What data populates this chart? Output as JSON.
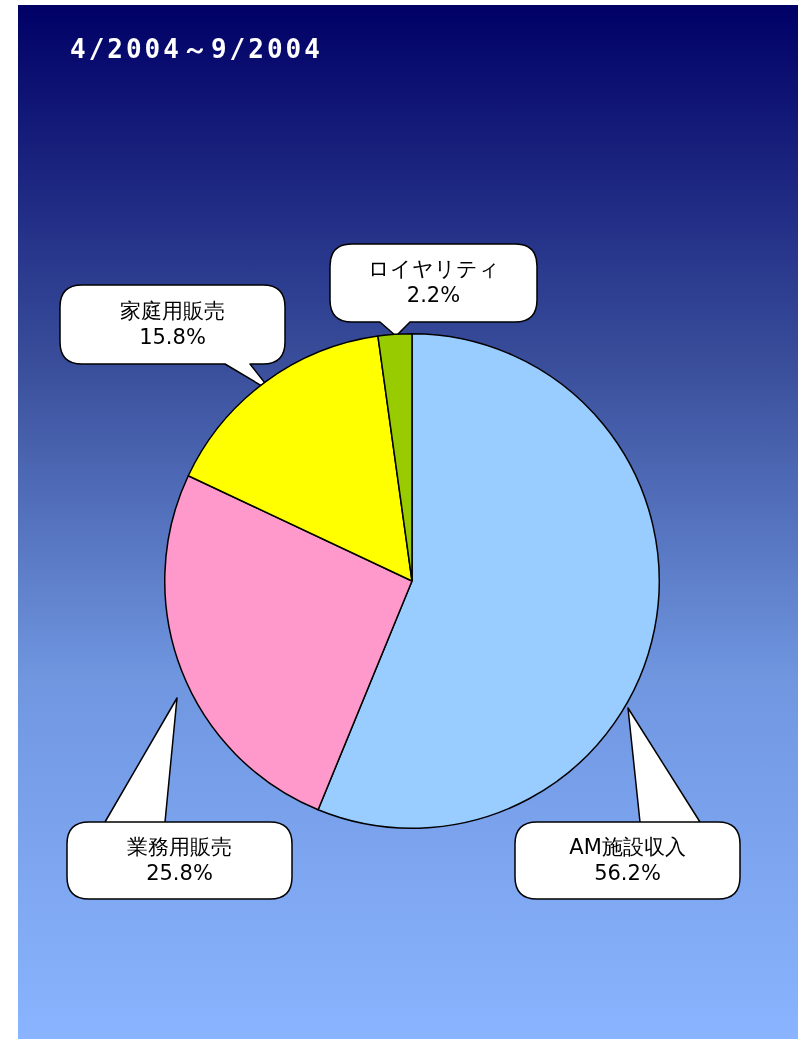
{
  "chart_data": {
    "type": "pie",
    "title": "4/2004～9/2004",
    "categories": [
      "AM施設収入",
      "業務用販売",
      "家庭用販売",
      "ロイヤリティ"
    ],
    "values": [
      56.2,
      25.8,
      15.8,
      2.2
    ],
    "value_labels": [
      "56.2%",
      "25.8%",
      "15.8%",
      "2.2%"
    ],
    "colors": [
      "#99ccff",
      "#ff99cc",
      "#ffff00",
      "#99cc00"
    ],
    "legend": false
  }
}
